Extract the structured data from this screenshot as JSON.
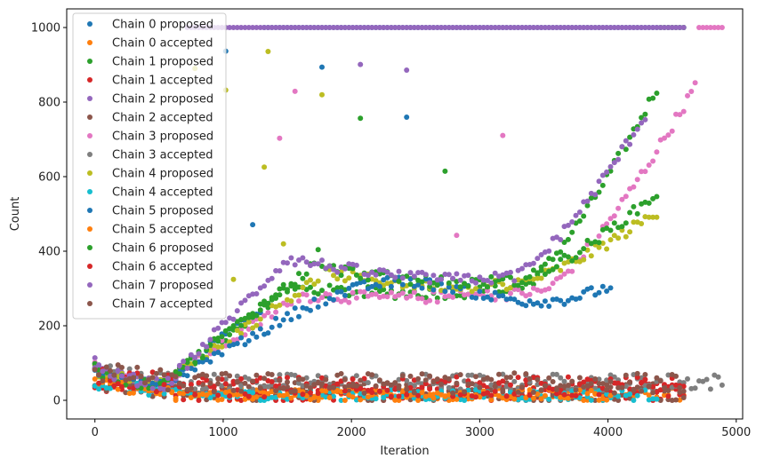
{
  "chart_data": {
    "type": "scatter",
    "xlabel": "Iteration",
    "ylabel": "Count",
    "xlim": [
      -220,
      5050
    ],
    "ylim": [
      -50,
      1050
    ],
    "xticks": [
      0,
      1000,
      2000,
      3000,
      4000,
      5000
    ],
    "yticks": [
      0,
      200,
      400,
      600,
      800,
      1000
    ],
    "legend_position": "upper-left",
    "grid": false,
    "series": [
      {
        "name": "Chain 0 proposed",
        "color": "#1f77b4",
        "kind": "proposed",
        "n": 4620,
        "start": 95,
        "min": 30,
        "minAt": 480,
        "peakAt": 1400,
        "peak": 280,
        "final": 0,
        "satFrom": 1300,
        "trend": "none"
      },
      {
        "name": "Chain 0 accepted",
        "color": "#ff7f0e",
        "kind": "accepted",
        "n": 4620,
        "level": 10,
        "spread": 35
      },
      {
        "name": "Chain 1 proposed",
        "color": "#2ca02c",
        "kind": "proposed",
        "n": 4620,
        "start": 90,
        "min": 35,
        "minAt": 500,
        "peakAt": 1500,
        "peak": 300,
        "final": 1000,
        "satFrom": 4400,
        "trend": "rise"
      },
      {
        "name": "Chain 1 accepted",
        "color": "#d62728",
        "kind": "accepted",
        "n": 4620,
        "level": 12,
        "spread": 50
      },
      {
        "name": "Chain 2 proposed",
        "color": "#9467bd",
        "kind": "proposed",
        "n": 4620,
        "start": 100,
        "min": 40,
        "minAt": 500,
        "peakAt": 1600,
        "peak": 310,
        "final": 1000,
        "satFrom": 700,
        "trend": "none"
      },
      {
        "name": "Chain 2 accepted",
        "color": "#8c564b",
        "kind": "accepted",
        "n": 4620,
        "level": 12,
        "spread": 55
      },
      {
        "name": "Chain 3 proposed",
        "color": "#e377c2",
        "kind": "proposed",
        "n": 4920,
        "start": 95,
        "min": 38,
        "minAt": 500,
        "peakAt": 1600,
        "peak": 280,
        "final": 990,
        "satFrom": 4700,
        "trend": "rise"
      },
      {
        "name": "Chain 3 accepted",
        "color": "#7f7f7f",
        "kind": "accepted",
        "n": 4920,
        "level": 40,
        "spread": 45
      },
      {
        "name": "Chain 4 proposed",
        "color": "#bcbd22",
        "kind": "proposed",
        "n": 4400,
        "start": 90,
        "min": 40,
        "minAt": 500,
        "peakAt": 1800,
        "peak": 340,
        "final": 510,
        "satFrom": 99999,
        "trend": "rise"
      },
      {
        "name": "Chain 4 accepted",
        "color": "#17becf",
        "kind": "accepted",
        "n": 4400,
        "level": 8,
        "spread": 30
      },
      {
        "name": "Chain 5 proposed",
        "color": "#1f77b4",
        "kind": "proposed",
        "n": 4050,
        "start": 92,
        "min": 35,
        "minAt": 500,
        "peakAt": 1700,
        "peak": 260,
        "final": 320,
        "satFrom": 99999,
        "trend": "flat"
      },
      {
        "name": "Chain 5 accepted",
        "color": "#ff7f0e",
        "kind": "accepted",
        "n": 4050,
        "level": 8,
        "spread": 30
      },
      {
        "name": "Chain 6 proposed",
        "color": "#2ca02c",
        "kind": "proposed",
        "n": 4400,
        "start": 88,
        "min": 38,
        "minAt": 500,
        "peakAt": 1700,
        "peak": 360,
        "final": 560,
        "satFrom": 99999,
        "trend": "rise"
      },
      {
        "name": "Chain 6 accepted",
        "color": "#d62728",
        "kind": "accepted",
        "n": 4620,
        "level": 25,
        "spread": 55
      },
      {
        "name": "Chain 7 proposed",
        "color": "#9467bd",
        "kind": "proposed",
        "n": 4300,
        "start": 100,
        "min": 40,
        "minAt": 550,
        "peakAt": 1500,
        "peak": 380,
        "final": 770,
        "satFrom": 99999,
        "trend": "rise"
      },
      {
        "name": "Chain 7 accepted",
        "color": "#8c564b",
        "kind": "accepted",
        "n": 4620,
        "level": 35,
        "spread": 55
      }
    ]
  }
}
